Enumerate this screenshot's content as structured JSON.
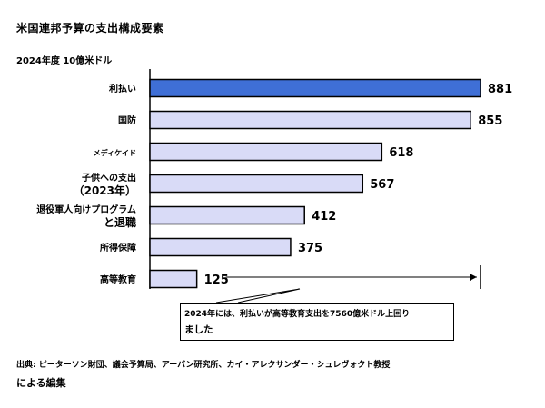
{
  "title": "米国連邦予算の支出構成要素",
  "subtitle": "2024年度 10億米ドル",
  "chart_data": {
    "type": "bar",
    "orientation": "horizontal",
    "categories": [
      [
        "利払い"
      ],
      [
        "国防"
      ],
      [
        "メディケイド"
      ],
      [
        "子供への支出",
        "（2023年）"
      ],
      [
        "退役軍人向けプログラム",
        "と退職"
      ],
      [
        "所得保障"
      ],
      [
        "高等教育"
      ]
    ],
    "values": [
      881,
      855,
      618,
      567,
      412,
      375,
      125
    ],
    "highlight_index": 0,
    "colors": {
      "highlight": "#3f6fd6",
      "normal": "#d9dbf7",
      "stroke": "#000000"
    },
    "xlim": [
      0,
      881
    ],
    "grid": false,
    "annotation": {
      "from_value": 125,
      "to_value": 881,
      "line1": "2024年には、利払いが高等教育支出を7560億米ドル上回り",
      "line2": "ました"
    }
  },
  "source": {
    "line1": "出典: ピーターソン財団、議会予算局、アーバン研究所、カイ・アレクサンダー・シュレヴォクト教授",
    "line2": "による編集"
  }
}
